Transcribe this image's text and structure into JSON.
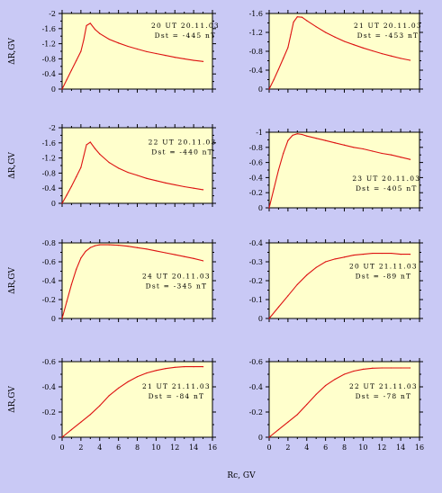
{
  "colors": {
    "page_background": "#c9c9f5",
    "plot_background": "#ffffcc",
    "curve": "#dd1111",
    "axis": "#000000"
  },
  "figure": {
    "xlabel": "Rc, GV",
    "ylabel": "ΔR,GV"
  },
  "chart_data": [
    {
      "type": "line",
      "annotation": [
        "20 UT 20.11.03",
        "Dst = -445 nT"
      ],
      "xlim": [
        0,
        16
      ],
      "ylim": [
        0,
        -2.0
      ],
      "yticks": [
        0,
        -0.4,
        -0.8,
        -1.2,
        -1.6,
        -2
      ],
      "ytick_labels": [
        "0",
        "-0.4",
        "-0.8",
        "-1.2",
        "-1.6",
        "-2"
      ],
      "xticks": [
        0,
        2,
        4,
        6,
        8,
        10,
        12,
        14,
        16
      ],
      "x": [
        0,
        0.5,
        1,
        1.5,
        2,
        2.3,
        2.6,
        3,
        3.5,
        4,
        5,
        6,
        7,
        8,
        9,
        10,
        11,
        12,
        13,
        14,
        15
      ],
      "y": [
        0,
        -0.25,
        -0.5,
        -0.75,
        -1.0,
        -1.3,
        -1.68,
        -1.74,
        -1.58,
        -1.47,
        -1.32,
        -1.22,
        -1.13,
        -1.06,
        -0.99,
        -0.94,
        -0.89,
        -0.84,
        -0.8,
        -0.76,
        -0.73
      ]
    },
    {
      "type": "line",
      "annotation": [
        "21 UT 20.11.03",
        "Dst = -453 nT"
      ],
      "xlim": [
        0,
        16
      ],
      "ylim": [
        0,
        -1.6
      ],
      "yticks": [
        0,
        -0.4,
        -0.8,
        -1.2,
        -1.6
      ],
      "ytick_labels": [
        "0",
        "-0.4",
        "-0.8",
        "-1.2",
        "-1.6"
      ],
      "xticks": [
        0,
        2,
        4,
        6,
        8,
        10,
        12,
        14,
        16
      ],
      "x": [
        0,
        0.5,
        1,
        1.5,
        2,
        2.3,
        2.6,
        3,
        3.5,
        4,
        5,
        6,
        7,
        8,
        9,
        10,
        11,
        12,
        13,
        14,
        15
      ],
      "y": [
        0,
        -0.2,
        -0.42,
        -0.65,
        -0.88,
        -1.15,
        -1.42,
        -1.53,
        -1.52,
        -1.45,
        -1.32,
        -1.2,
        -1.1,
        -1.01,
        -0.94,
        -0.87,
        -0.81,
        -0.75,
        -0.7,
        -0.65,
        -0.61
      ]
    },
    {
      "type": "line",
      "annotation": [
        "22 UT 20.11.03",
        "Dst = -440 nT"
      ],
      "xlim": [
        0,
        16
      ],
      "ylim": [
        0,
        -2.0
      ],
      "yticks": [
        0,
        -0.4,
        -0.8,
        -1.2,
        -1.6,
        -2
      ],
      "ytick_labels": [
        "0",
        "-0.4",
        "-0.8",
        "-1.2",
        "-1.6",
        "-2"
      ],
      "xticks": [
        0,
        2,
        4,
        6,
        8,
        10,
        12,
        14,
        16
      ],
      "x": [
        0,
        0.5,
        1,
        1.5,
        2,
        2.3,
        2.6,
        3,
        3.5,
        4,
        5,
        6,
        7,
        8,
        9,
        10,
        11,
        12,
        13,
        14,
        15
      ],
      "y": [
        0,
        -0.22,
        -0.45,
        -0.7,
        -0.95,
        -1.25,
        -1.55,
        -1.62,
        -1.45,
        -1.3,
        -1.08,
        -0.93,
        -0.82,
        -0.74,
        -0.66,
        -0.6,
        -0.54,
        -0.49,
        -0.44,
        -0.4,
        -0.36
      ]
    },
    {
      "type": "line",
      "annotation": [
        "23 UT 20.11.03",
        "Dst = -405 nT"
      ],
      "xlim": [
        0,
        16
      ],
      "ylim": [
        0,
        -1.0
      ],
      "yticks": [
        0,
        -0.2,
        -0.4,
        -0.6,
        -0.8,
        -1
      ],
      "ytick_labels": [
        "0",
        "-0.2",
        "-0.4",
        "-0.6",
        "-0.8",
        "-1"
      ],
      "xticks": [
        0,
        2,
        4,
        6,
        8,
        10,
        12,
        14,
        16
      ],
      "x": [
        0,
        0.5,
        1,
        1.5,
        2,
        2.5,
        3,
        3.5,
        4,
        5,
        6,
        7,
        8,
        9,
        10,
        11,
        12,
        13,
        14,
        15
      ],
      "y": [
        0,
        -0.25,
        -0.5,
        -0.72,
        -0.89,
        -0.96,
        -0.98,
        -0.97,
        -0.95,
        -0.92,
        -0.89,
        -0.86,
        -0.83,
        -0.8,
        -0.78,
        -0.75,
        -0.72,
        -0.7,
        -0.67,
        -0.64
      ]
    },
    {
      "type": "line",
      "annotation": [
        "24 UT 20.11.03",
        "Dst = -345 nT"
      ],
      "xlim": [
        0,
        16
      ],
      "ylim": [
        0,
        -0.8
      ],
      "yticks": [
        0,
        -0.2,
        -0.4,
        -0.6,
        -0.8
      ],
      "ytick_labels": [
        "0",
        "-0.2",
        "-0.4",
        "-0.6",
        "-0.8"
      ],
      "xticks": [
        0,
        2,
        4,
        6,
        8,
        10,
        12,
        14,
        16
      ],
      "x": [
        0,
        0.5,
        1,
        1.5,
        2,
        2.5,
        3,
        3.5,
        4,
        5,
        6,
        7,
        8,
        9,
        10,
        11,
        12,
        13,
        14,
        15
      ],
      "y": [
        0,
        -0.18,
        -0.36,
        -0.52,
        -0.64,
        -0.71,
        -0.75,
        -0.77,
        -0.78,
        -0.78,
        -0.775,
        -0.765,
        -0.75,
        -0.735,
        -0.715,
        -0.695,
        -0.675,
        -0.655,
        -0.635,
        -0.61
      ]
    },
    {
      "type": "line",
      "annotation": [
        "20 UT 21.11.03",
        "Dst = -89 nT"
      ],
      "xlim": [
        0,
        16
      ],
      "ylim": [
        0,
        -0.4
      ],
      "yticks": [
        0,
        -0.1,
        -0.2,
        -0.3,
        -0.4
      ],
      "ytick_labels": [
        "0",
        "-0.1",
        "-0.2",
        "-0.3",
        "-0.4"
      ],
      "xticks": [
        0,
        2,
        4,
        6,
        8,
        10,
        12,
        14,
        16
      ],
      "x": [
        0,
        1,
        2,
        3,
        4,
        5,
        6,
        7,
        8,
        9,
        10,
        11,
        12,
        13,
        14,
        15
      ],
      "y": [
        0,
        -0.06,
        -0.12,
        -0.18,
        -0.23,
        -0.27,
        -0.3,
        -0.315,
        -0.325,
        -0.335,
        -0.34,
        -0.345,
        -0.345,
        -0.345,
        -0.34,
        -0.34
      ]
    },
    {
      "type": "line",
      "annotation": [
        "21 UT 21.11.03",
        "Dst = -84 nT"
      ],
      "xlim": [
        0,
        16
      ],
      "ylim": [
        0,
        -0.6
      ],
      "yticks": [
        0,
        -0.2,
        -0.4,
        -0.6
      ],
      "ytick_labels": [
        "0",
        "-0.2",
        "-0.4",
        "-0.6"
      ],
      "xticks": [
        0,
        2,
        4,
        6,
        8,
        10,
        12,
        14,
        16
      ],
      "x": [
        0,
        1,
        2,
        3,
        4,
        5,
        6,
        7,
        8,
        9,
        10,
        11,
        12,
        13,
        14,
        15
      ],
      "y": [
        0,
        -0.06,
        -0.12,
        -0.18,
        -0.25,
        -0.33,
        -0.39,
        -0.44,
        -0.48,
        -0.51,
        -0.53,
        -0.545,
        -0.555,
        -0.56,
        -0.56,
        -0.56
      ]
    },
    {
      "type": "line",
      "annotation": [
        "22 UT 21.11.03",
        "Dst = -78 nT"
      ],
      "xlim": [
        0,
        16
      ],
      "ylim": [
        0,
        -0.6
      ],
      "yticks": [
        0,
        -0.2,
        -0.4,
        -0.6
      ],
      "ytick_labels": [
        "0",
        "-0.2",
        "-0.4",
        "-0.6"
      ],
      "xticks": [
        0,
        2,
        4,
        6,
        8,
        10,
        12,
        14,
        16
      ],
      "xtick_labels": [
        "0",
        "2",
        "4",
        "6",
        "8",
        "10",
        "12",
        "14",
        "16"
      ],
      "x": [
        0,
        1,
        2,
        3,
        4,
        5,
        6,
        7,
        8,
        9,
        10,
        11,
        12,
        13,
        14,
        15
      ],
      "y": [
        0,
        -0.06,
        -0.12,
        -0.18,
        -0.26,
        -0.34,
        -0.41,
        -0.46,
        -0.5,
        -0.525,
        -0.54,
        -0.548,
        -0.55,
        -0.55,
        -0.55,
        -0.55
      ]
    }
  ]
}
